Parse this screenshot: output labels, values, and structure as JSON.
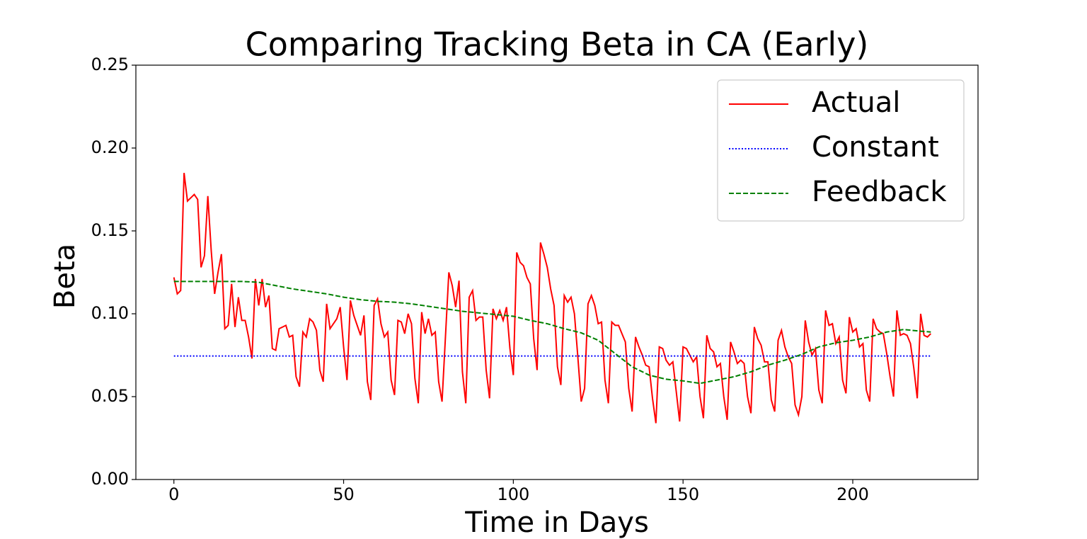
{
  "chart_data": {
    "type": "line",
    "title": "Comparing Tracking Beta in CA (Early)",
    "xlabel": "Time in Days",
    "ylabel": "Beta",
    "xlim": [
      -11.2,
      236.9
    ],
    "ylim": [
      0,
      0.25
    ],
    "xticks": [
      0,
      50,
      100,
      150,
      200
    ],
    "yticks": [
      {
        "value": 0,
        "label": "0.00"
      },
      {
        "value": 0.05,
        "label": "0.05"
      },
      {
        "value": 0.1,
        "label": "0.10"
      },
      {
        "value": 0.15,
        "label": "0.15"
      },
      {
        "value": 0.2,
        "label": "0.20"
      },
      {
        "value": 0.25,
        "label": "0.25"
      }
    ],
    "legend": "upper right",
    "series": [
      {
        "name": "Actual",
        "color": "#ff0000",
        "linestyle": "solid",
        "x": [
          0,
          1,
          2,
          3,
          4,
          5,
          6,
          7,
          8,
          9,
          10,
          11,
          12,
          13,
          14,
          15,
          16,
          17,
          18,
          19,
          20,
          21,
          22,
          23,
          24,
          25,
          26,
          27,
          28,
          29,
          30,
          31,
          32,
          33,
          34,
          35,
          36,
          37,
          38,
          39,
          40,
          41,
          42,
          43,
          44,
          45,
          46,
          47,
          48,
          49,
          50,
          51,
          52,
          53,
          54,
          55,
          56,
          57,
          58,
          59,
          60,
          61,
          62,
          63,
          64,
          65,
          66,
          67,
          68,
          69,
          70,
          71,
          72,
          73,
          74,
          75,
          76,
          77,
          78,
          79,
          80,
          81,
          82,
          83,
          84,
          85,
          86,
          87,
          88,
          89,
          90,
          91,
          92,
          93,
          94,
          95,
          96,
          97,
          98,
          99,
          100,
          101,
          102,
          103,
          104,
          105,
          106,
          107,
          108,
          109,
          110,
          111,
          112,
          113,
          114,
          115,
          116,
          117,
          118,
          119,
          120,
          121,
          122,
          123,
          124,
          125,
          126,
          127,
          128,
          129,
          130,
          131,
          132,
          133,
          134,
          135,
          136,
          137,
          138,
          139,
          140,
          141,
          142,
          143,
          144,
          145,
          146,
          147,
          148,
          149,
          150,
          151,
          152,
          153,
          154,
          155,
          156,
          157,
          158,
          159,
          160,
          161,
          162,
          163,
          164,
          165,
          166,
          167,
          168,
          169,
          170,
          171,
          172,
          173,
          174,
          175,
          176,
          177,
          178,
          179,
          180,
          181,
          182,
          183,
          184,
          185,
          186,
          187,
          188,
          189,
          190,
          191,
          192,
          193,
          194,
          195,
          196,
          197,
          198,
          199,
          200,
          201,
          202,
          203,
          204,
          205,
          206,
          207,
          208,
          209,
          210,
          211,
          212,
          213,
          214,
          215,
          216,
          217,
          218,
          219,
          220,
          221,
          222,
          223
        ],
        "values": [
          0.122,
          0.112,
          0.114,
          0.185,
          0.168,
          0.17,
          0.172,
          0.169,
          0.128,
          0.135,
          0.171,
          0.138,
          0.112,
          0.125,
          0.136,
          0.091,
          0.093,
          0.118,
          0.092,
          0.11,
          0.096,
          0.096,
          0.086,
          0.073,
          0.121,
          0.105,
          0.121,
          0.104,
          0.111,
          0.079,
          0.078,
          0.091,
          0.092,
          0.093,
          0.086,
          0.087,
          0.062,
          0.056,
          0.089,
          0.086,
          0.097,
          0.095,
          0.09,
          0.066,
          0.059,
          0.106,
          0.091,
          0.094,
          0.097,
          0.104,
          0.08,
          0.06,
          0.108,
          0.099,
          0.093,
          0.087,
          0.099,
          0.059,
          0.048,
          0.105,
          0.109,
          0.094,
          0.086,
          0.089,
          0.06,
          0.051,
          0.096,
          0.095,
          0.088,
          0.1,
          0.094,
          0.061,
          0.046,
          0.101,
          0.088,
          0.097,
          0.087,
          0.089,
          0.059,
          0.047,
          0.086,
          0.125,
          0.117,
          0.104,
          0.12,
          0.065,
          0.046,
          0.11,
          0.114,
          0.096,
          0.098,
          0.098,
          0.066,
          0.049,
          0.103,
          0.097,
          0.102,
          0.096,
          0.104,
          0.079,
          0.063,
          0.137,
          0.131,
          0.129,
          0.122,
          0.118,
          0.085,
          0.066,
          0.143,
          0.136,
          0.128,
          0.115,
          0.105,
          0.068,
          0.057,
          0.111,
          0.107,
          0.11,
          0.1,
          0.074,
          0.047,
          0.055,
          0.106,
          0.111,
          0.105,
          0.094,
          0.095,
          0.06,
          0.046,
          0.095,
          0.093,
          0.093,
          0.088,
          0.083,
          0.055,
          0.041,
          0.086,
          0.08,
          0.075,
          0.069,
          0.068,
          0.049,
          0.034,
          0.08,
          0.079,
          0.072,
          0.069,
          0.071,
          0.053,
          0.035,
          0.08,
          0.079,
          0.075,
          0.071,
          0.074,
          0.05,
          0.037,
          0.087,
          0.079,
          0.077,
          0.068,
          0.07,
          0.05,
          0.036,
          0.083,
          0.077,
          0.07,
          0.072,
          0.07,
          0.05,
          0.04,
          0.092,
          0.085,
          0.081,
          0.071,
          0.071,
          0.048,
          0.041,
          0.084,
          0.09,
          0.08,
          0.074,
          0.07,
          0.045,
          0.039,
          0.05,
          0.096,
          0.083,
          0.075,
          0.079,
          0.054,
          0.046,
          0.102,
          0.093,
          0.094,
          0.082,
          0.086,
          0.06,
          0.052,
          0.098,
          0.089,
          0.091,
          0.08,
          0.082,
          0.054,
          0.047,
          0.097,
          0.091,
          0.089,
          0.088,
          0.076,
          0.062,
          0.05,
          0.102,
          0.087,
          0.088,
          0.087,
          0.082,
          0.067,
          0.049,
          0.1,
          0.087,
          0.086,
          0.088
        ]
      },
      {
        "name": "Constant",
        "color": "#0000ff",
        "linestyle": "dotted",
        "x": [
          0,
          223
        ],
        "values": [
          0.0745,
          0.0745
        ]
      },
      {
        "name": "Feedback",
        "color": "#008000",
        "linestyle": "dashed",
        "x": [
          0,
          20,
          25,
          30,
          35,
          40,
          45,
          50,
          55,
          60,
          65,
          70,
          75,
          80,
          85,
          90,
          95,
          100,
          105,
          110,
          115,
          120,
          125,
          130,
          135,
          140,
          145,
          150,
          155,
          160,
          165,
          170,
          175,
          180,
          185,
          190,
          195,
          200,
          205,
          210,
          215,
          220,
          223
        ],
        "values": [
          0.1195,
          0.1195,
          0.119,
          0.117,
          0.115,
          0.1135,
          0.112,
          0.11,
          0.1085,
          0.1075,
          0.107,
          0.106,
          0.1045,
          0.103,
          0.1015,
          0.1005,
          0.0995,
          0.0985,
          0.096,
          0.094,
          0.091,
          0.0885,
          0.084,
          0.076,
          0.068,
          0.063,
          0.0605,
          0.0595,
          0.058,
          0.06,
          0.062,
          0.065,
          0.069,
          0.072,
          0.0755,
          0.08,
          0.0825,
          0.084,
          0.086,
          0.089,
          0.0905,
          0.0895,
          0.089
        ]
      }
    ]
  }
}
